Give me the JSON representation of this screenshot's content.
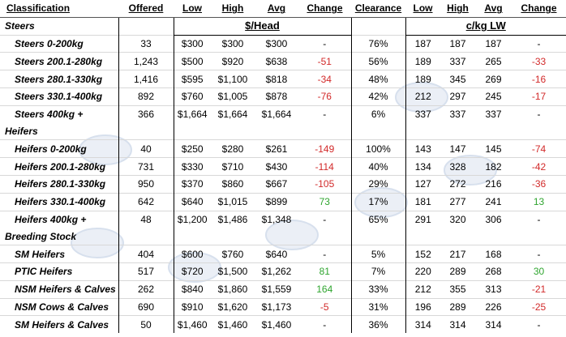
{
  "header": {
    "classification": "Classification",
    "offered": "Offered",
    "low": "Low",
    "high": "High",
    "avg": "Avg",
    "change": "Change",
    "clearance": "Clearance",
    "low2": "Low",
    "high2": "High",
    "avg2": "Avg",
    "change2": "Change"
  },
  "units": {
    "head": "$/Head",
    "lw": "c/kg LW"
  },
  "sections": [
    {
      "title": "Steers",
      "rows": [
        {
          "label": "Steers 0-200kg",
          "offered": "33",
          "low": "$300",
          "high": "$300",
          "avg": "$300",
          "change": "-",
          "clearance": "76%",
          "low2": "187",
          "high2": "187",
          "avg2": "187",
          "change2": "-"
        },
        {
          "label": "Steers 200.1-280kg",
          "offered": "1,243",
          "low": "$500",
          "high": "$920",
          "avg": "$638",
          "change": "-51",
          "clearance": "56%",
          "low2": "189",
          "high2": "337",
          "avg2": "265",
          "change2": "-33"
        },
        {
          "label": "Steers 280.1-330kg",
          "offered": "1,416",
          "low": "$595",
          "high": "$1,100",
          "avg": "$818",
          "change": "-34",
          "clearance": "48%",
          "low2": "189",
          "high2": "345",
          "avg2": "269",
          "change2": "-16"
        },
        {
          "label": "Steers 330.1-400kg",
          "offered": "892",
          "low": "$760",
          "high": "$1,005",
          "avg": "$878",
          "change": "-76",
          "clearance": "42%",
          "low2": "212",
          "high2": "297",
          "avg2": "245",
          "change2": "-17"
        },
        {
          "label": "Steers 400kg +",
          "offered": "366",
          "low": "$1,664",
          "high": "$1,664",
          "avg": "$1,664",
          "change": "-",
          "clearance": "6%",
          "low2": "337",
          "high2": "337",
          "avg2": "337",
          "change2": "-"
        }
      ]
    },
    {
      "title": "Heifers",
      "rows": [
        {
          "label": "Heifers 0-200kg",
          "offered": "40",
          "low": "$250",
          "high": "$280",
          "avg": "$261",
          "change": "-149",
          "clearance": "100%",
          "low2": "143",
          "high2": "147",
          "avg2": "145",
          "change2": "-74"
        },
        {
          "label": "Heifers 200.1-280kg",
          "offered": "731",
          "low": "$330",
          "high": "$710",
          "avg": "$430",
          "change": "-114",
          "clearance": "40%",
          "low2": "134",
          "high2": "328",
          "avg2": "182",
          "change2": "-42"
        },
        {
          "label": "Heifers 280.1-330kg",
          "offered": "950",
          "low": "$370",
          "high": "$860",
          "avg": "$667",
          "change": "-105",
          "clearance": "29%",
          "low2": "127",
          "high2": "272",
          "avg2": "216",
          "change2": "-36"
        },
        {
          "label": "Heifers 330.1-400kg",
          "offered": "642",
          "low": "$640",
          "high": "$1,015",
          "avg": "$899",
          "change": "73",
          "clearance": "17%",
          "low2": "181",
          "high2": "277",
          "avg2": "241",
          "change2": "13"
        },
        {
          "label": "Heifers 400kg +",
          "offered": "48",
          "low": "$1,200",
          "high": "$1,486",
          "avg": "$1,348",
          "change": "-",
          "clearance": "65%",
          "low2": "291",
          "high2": "320",
          "avg2": "306",
          "change2": "-"
        }
      ]
    },
    {
      "title": "Breeding Stock",
      "rows": [
        {
          "label": "SM Heifers",
          "offered": "404",
          "low": "$600",
          "high": "$760",
          "avg": "$640",
          "change": "-",
          "clearance": "5%",
          "low2": "152",
          "high2": "217",
          "avg2": "168",
          "change2": "-"
        },
        {
          "label": "PTIC Heifers",
          "offered": "517",
          "low": "$720",
          "high": "$1,500",
          "avg": "$1,262",
          "change": "81",
          "clearance": "7%",
          "low2": "220",
          "high2": "289",
          "avg2": "268",
          "change2": "30"
        },
        {
          "label": "NSM Heifers & Calves",
          "offered": "262",
          "low": "$840",
          "high": "$1,860",
          "avg": "$1,559",
          "change": "164",
          "clearance": "33%",
          "low2": "212",
          "high2": "355",
          "avg2": "313",
          "change2": "-21"
        },
        {
          "label": "NSM Cows & Calves",
          "offered": "690",
          "low": "$910",
          "high": "$1,620",
          "avg": "$1,173",
          "change": "-5",
          "clearance": "31%",
          "low2": "196",
          "high2": "289",
          "avg2": "226",
          "change2": "-25"
        },
        {
          "label": "SM Heifers & Calves",
          "offered": "50",
          "low": "$1,460",
          "high": "$1,460",
          "avg": "$1,460",
          "change": "-",
          "clearance": "36%",
          "low2": "314",
          "high2": "314",
          "avg2": "314",
          "change2": "-"
        }
      ]
    }
  ],
  "colors": {
    "negative": "#d22a2a",
    "positive": "#2fa52f",
    "watermark": "#c7d3e6"
  },
  "watermark_icon": "cattle-logo-icon"
}
